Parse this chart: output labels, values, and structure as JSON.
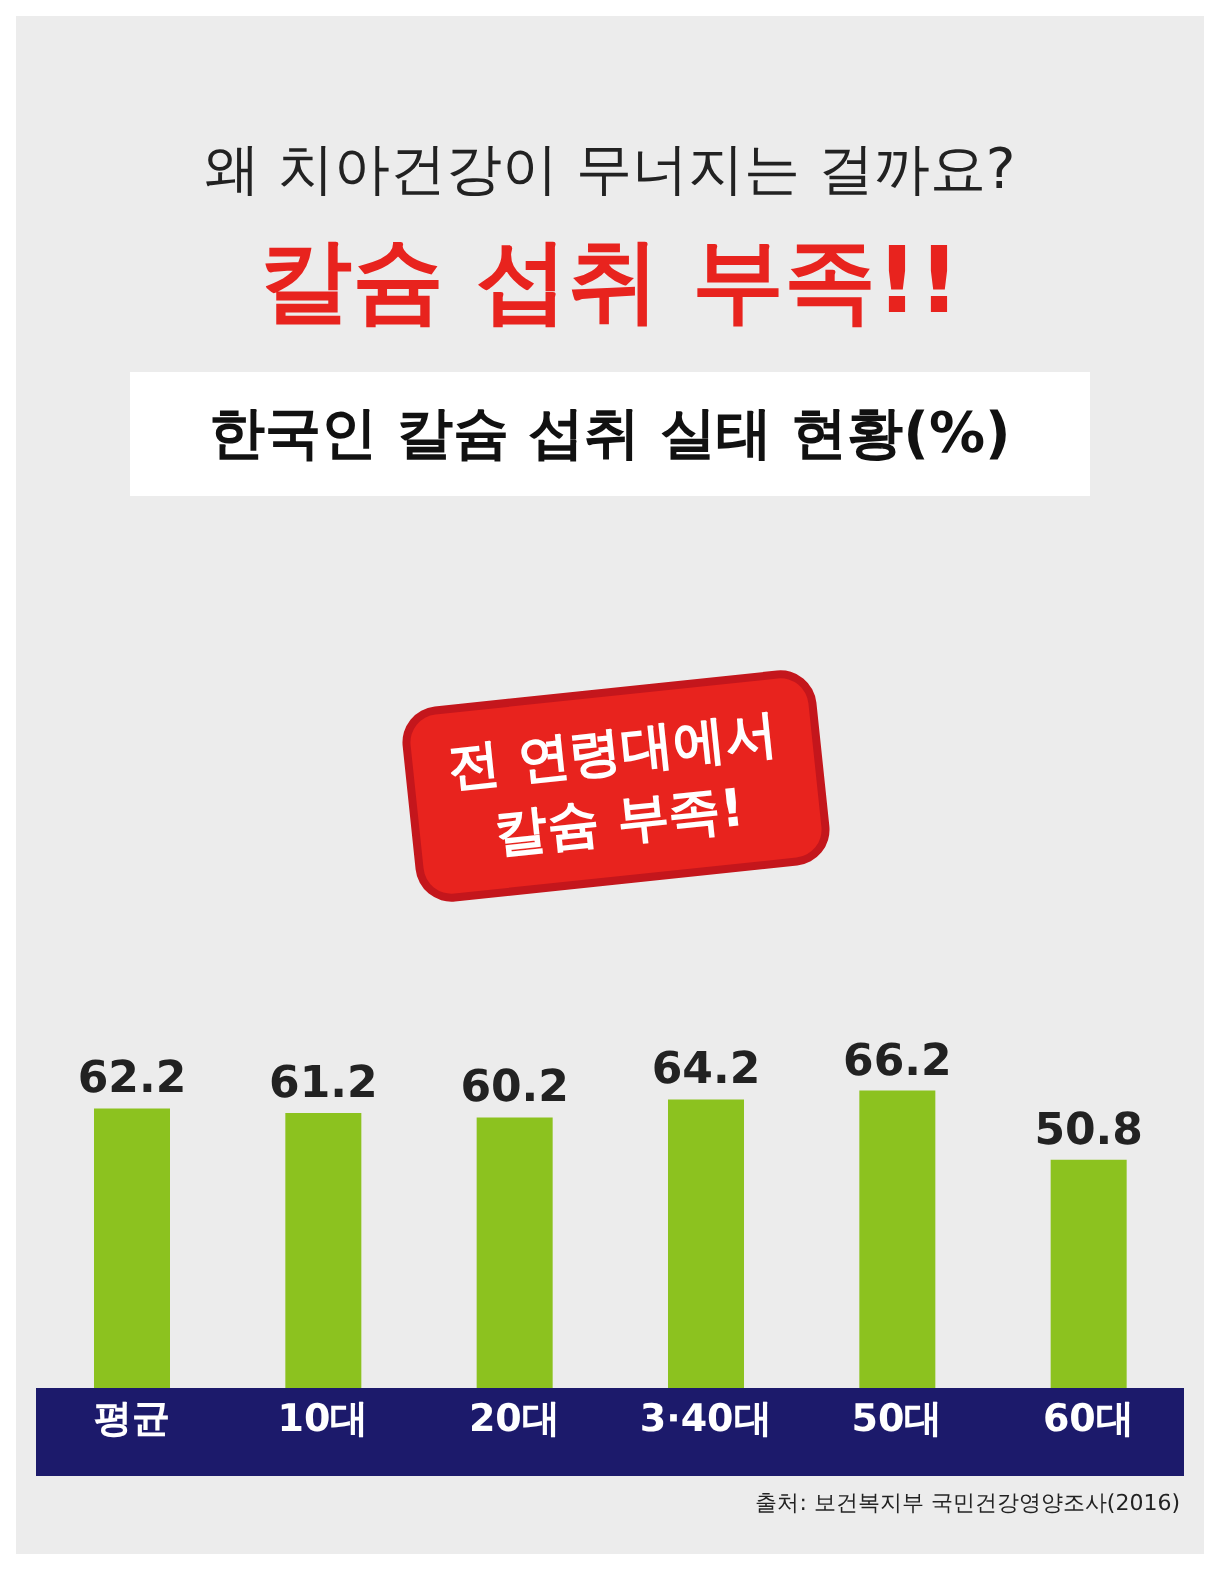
{
  "chart_data": {
    "type": "bar",
    "title": "왜 치아건강이 무너지는 걸까요?",
    "subtitle": "칼슘 섭취 부족!!",
    "categories": [
      "평균",
      "10대",
      "20대",
      "3·40대",
      "50대",
      "60대"
    ],
    "values": [
      62.2,
      61.2,
      60.2,
      64.2,
      66.2,
      50.8
    ],
    "color": "#8cc21f",
    "tick_labels": "x",
    "data_labels": true,
    "annotations": [
      "한국인 칼슘 섭취 실태 현황(%)",
      "전 연령대에서 칼슘 부족!",
      "출처: 보건복지부 국민건강영양조사(2016)"
    ]
  }
}
